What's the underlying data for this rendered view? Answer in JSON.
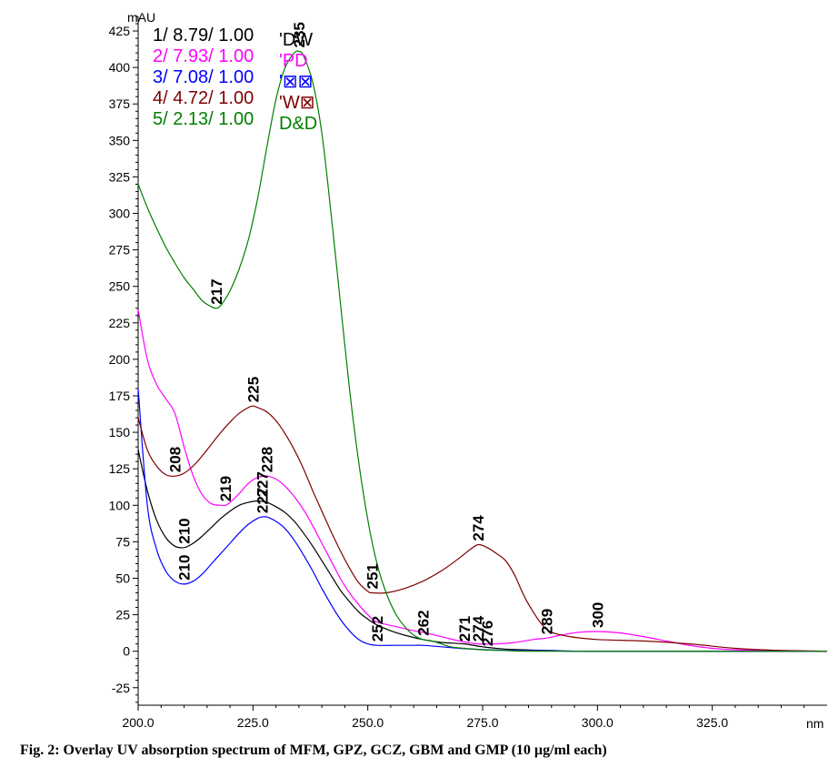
{
  "caption": "Fig. 2: Overlay UV absorption spectrum of MFM, GPZ, GCZ, GBM and GMP (10 µg/ml each)",
  "chart_data": {
    "type": "line",
    "title": "",
    "xlabel": "nm",
    "ylabel": "mAU",
    "xlim": [
      200,
      350
    ],
    "ylim": [
      -37,
      435
    ],
    "x_ticks": [
      200,
      225,
      250,
      275,
      300,
      325
    ],
    "x_tick_labels": [
      "200.0",
      "225.0",
      "250.0",
      "275.0",
      "300.0",
      "325.0"
    ],
    "y_ticks": [
      -25,
      0,
      25,
      50,
      75,
      100,
      125,
      150,
      175,
      200,
      225,
      250,
      275,
      300,
      325,
      350,
      375,
      400,
      425
    ],
    "grid": false,
    "legend_position": "top-left",
    "series": [
      {
        "legend": "1/ 8.79/ 1.00",
        "name": "'DW",
        "color": "#000000",
        "points": [
          [
            200,
            138
          ],
          [
            202,
            110
          ],
          [
            204,
            90
          ],
          [
            206,
            78
          ],
          [
            208,
            72
          ],
          [
            210,
            71
          ],
          [
            212,
            74
          ],
          [
            214,
            79
          ],
          [
            216,
            85
          ],
          [
            218,
            91
          ],
          [
            220,
            96
          ],
          [
            222,
            100
          ],
          [
            224,
            102
          ],
          [
            226,
            103
          ],
          [
            228,
            102
          ],
          [
            230,
            99
          ],
          [
            232,
            95
          ],
          [
            234,
            89
          ],
          [
            236,
            81
          ],
          [
            238,
            72
          ],
          [
            240,
            62
          ],
          [
            242,
            52
          ],
          [
            244,
            42
          ],
          [
            246,
            34
          ],
          [
            248,
            27
          ],
          [
            250,
            22
          ],
          [
            252,
            18
          ],
          [
            255,
            14
          ],
          [
            258,
            11
          ],
          [
            262,
            8
          ],
          [
            266,
            6
          ],
          [
            271,
            5
          ],
          [
            275,
            3
          ],
          [
            280,
            1.5
          ],
          [
            290,
            0.5
          ],
          [
            300,
            0
          ],
          [
            350,
            0
          ]
        ],
        "peak_labels": [
          {
            "x": 210,
            "y": 71,
            "text": "210"
          },
          {
            "x": 227,
            "y": 103,
            "text": "227"
          },
          {
            "x": 274,
            "y": 4,
            "text": "274"
          }
        ]
      },
      {
        "legend": "2/ 7.93/ 1.00",
        "name": "'PD",
        "color": "#ff00ff",
        "points": [
          [
            200,
            234
          ],
          [
            202,
            200
          ],
          [
            204,
            183
          ],
          [
            206,
            173
          ],
          [
            208,
            163
          ],
          [
            210,
            140
          ],
          [
            212,
            120
          ],
          [
            214,
            107
          ],
          [
            216,
            101
          ],
          [
            218,
            100
          ],
          [
            219,
            100
          ],
          [
            220,
            102
          ],
          [
            222,
            108
          ],
          [
            224,
            115
          ],
          [
            226,
            119
          ],
          [
            228,
            120
          ],
          [
            230,
            118
          ],
          [
            232,
            113
          ],
          [
            234,
            106
          ],
          [
            236,
            97
          ],
          [
            238,
            86
          ],
          [
            240,
            74
          ],
          [
            242,
            62
          ],
          [
            244,
            50
          ],
          [
            246,
            40
          ],
          [
            248,
            32
          ],
          [
            250,
            25
          ],
          [
            252,
            20
          ],
          [
            256,
            17
          ],
          [
            260,
            14
          ],
          [
            262,
            13
          ],
          [
            266,
            10
          ],
          [
            270,
            7
          ],
          [
            274,
            5
          ],
          [
            278,
            5
          ],
          [
            282,
            6
          ],
          [
            286,
            8
          ],
          [
            289,
            9
          ],
          [
            292,
            11
          ],
          [
            296,
            13
          ],
          [
            300,
            13.5
          ],
          [
            305,
            12.5
          ],
          [
            310,
            10
          ],
          [
            315,
            7
          ],
          [
            320,
            4
          ],
          [
            325,
            2
          ],
          [
            330,
            1
          ],
          [
            340,
            0.5
          ],
          [
            350,
            0
          ]
        ],
        "peak_labels": [
          {
            "x": 219,
            "y": 100,
            "text": "219"
          },
          {
            "x": 228,
            "y": 120,
            "text": "228"
          },
          {
            "x": 289,
            "y": 9,
            "text": "289"
          },
          {
            "x": 300,
            "y": 13.5,
            "text": "300"
          }
        ]
      },
      {
        "legend": "3/ 7.08/ 1.00",
        "name": "'⊠⊠",
        "color": "#0000ff",
        "points": [
          [
            200,
            180
          ],
          [
            202,
            100
          ],
          [
            204,
            70
          ],
          [
            206,
            55
          ],
          [
            208,
            48
          ],
          [
            210,
            46
          ],
          [
            212,
            48
          ],
          [
            214,
            53
          ],
          [
            216,
            60
          ],
          [
            218,
            67
          ],
          [
            220,
            74
          ],
          [
            222,
            81
          ],
          [
            224,
            87
          ],
          [
            226,
            91
          ],
          [
            227,
            92
          ],
          [
            228,
            92
          ],
          [
            230,
            89
          ],
          [
            232,
            84
          ],
          [
            234,
            76
          ],
          [
            236,
            66
          ],
          [
            238,
            55
          ],
          [
            240,
            43
          ],
          [
            242,
            32
          ],
          [
            244,
            22
          ],
          [
            246,
            14
          ],
          [
            248,
            8
          ],
          [
            250,
            5
          ],
          [
            252,
            4
          ],
          [
            256,
            4
          ],
          [
            260,
            4
          ],
          [
            262,
            4
          ],
          [
            266,
            3
          ],
          [
            270,
            2
          ],
          [
            276,
            1
          ],
          [
            285,
            0.5
          ],
          [
            300,
            0
          ],
          [
            350,
            0
          ]
        ],
        "peak_labels": [
          {
            "x": 210,
            "y": 46,
            "text": "210"
          },
          {
            "x": 227,
            "y": 92,
            "text": "227"
          },
          {
            "x": 252,
            "y": 4,
            "text": "252"
          },
          {
            "x": 276,
            "y": 1,
            "text": "276"
          }
        ]
      },
      {
        "legend": "4/ 4.72/ 1.00",
        "name": "'W⊠",
        "color": "#7f0000",
        "points": [
          [
            200,
            160
          ],
          [
            202,
            138
          ],
          [
            204,
            127
          ],
          [
            206,
            121
          ],
          [
            208,
            120
          ],
          [
            210,
            122
          ],
          [
            212,
            127
          ],
          [
            214,
            134
          ],
          [
            216,
            142
          ],
          [
            218,
            150
          ],
          [
            220,
            157
          ],
          [
            222,
            163
          ],
          [
            224,
            167
          ],
          [
            225,
            168
          ],
          [
            226,
            167
          ],
          [
            228,
            164
          ],
          [
            230,
            158
          ],
          [
            232,
            149
          ],
          [
            234,
            138
          ],
          [
            236,
            125
          ],
          [
            238,
            110
          ],
          [
            240,
            96
          ],
          [
            242,
            82
          ],
          [
            244,
            69
          ],
          [
            246,
            57
          ],
          [
            248,
            47
          ],
          [
            250,
            41
          ],
          [
            251,
            40
          ],
          [
            254,
            40
          ],
          [
            258,
            43
          ],
          [
            262,
            48
          ],
          [
            266,
            55
          ],
          [
            270,
            64
          ],
          [
            272,
            69
          ],
          [
            274,
            73
          ],
          [
            276,
            71
          ],
          [
            278,
            67
          ],
          [
            280,
            62
          ],
          [
            282,
            52
          ],
          [
            284,
            38
          ],
          [
            286,
            27
          ],
          [
            288,
            18
          ],
          [
            290,
            13
          ],
          [
            294,
            10
          ],
          [
            300,
            8
          ],
          [
            310,
            7
          ],
          [
            320,
            5
          ],
          [
            330,
            2
          ],
          [
            340,
            0.5
          ],
          [
            350,
            0
          ]
        ],
        "peak_labels": [
          {
            "x": 208,
            "y": 120,
            "text": "208"
          },
          {
            "x": 225,
            "y": 168,
            "text": "225"
          },
          {
            "x": 251,
            "y": 40,
            "text": "251"
          },
          {
            "x": 274,
            "y": 73,
            "text": "274"
          }
        ]
      },
      {
        "legend": "5/ 2.13/ 1.00",
        "name": "D&D",
        "color": "#007f00",
        "points": [
          [
            200,
            320
          ],
          [
            202,
            304
          ],
          [
            204,
            290
          ],
          [
            206,
            277
          ],
          [
            208,
            266
          ],
          [
            210,
            256
          ],
          [
            212,
            248
          ],
          [
            214,
            240
          ],
          [
            216,
            236
          ],
          [
            217,
            235
          ],
          [
            218,
            237
          ],
          [
            220,
            247
          ],
          [
            222,
            262
          ],
          [
            224,
            282
          ],
          [
            226,
            310
          ],
          [
            228,
            345
          ],
          [
            230,
            378
          ],
          [
            232,
            400
          ],
          [
            234,
            410
          ],
          [
            235,
            411
          ],
          [
            236,
            408
          ],
          [
            238,
            390
          ],
          [
            240,
            355
          ],
          [
            242,
            300
          ],
          [
            244,
            240
          ],
          [
            246,
            180
          ],
          [
            248,
            130
          ],
          [
            250,
            90
          ],
          [
            252,
            60
          ],
          [
            254,
            40
          ],
          [
            256,
            26
          ],
          [
            258,
            17
          ],
          [
            260,
            11
          ],
          [
            262,
            8
          ],
          [
            264,
            7
          ],
          [
            266,
            5
          ],
          [
            268,
            3
          ],
          [
            271,
            2
          ],
          [
            275,
            1
          ],
          [
            280,
            0.5
          ],
          [
            290,
            0
          ],
          [
            350,
            0
          ]
        ],
        "peak_labels": [
          {
            "x": 217,
            "y": 235,
            "text": "217"
          },
          {
            "x": 235,
            "y": 411,
            "text": "235"
          },
          {
            "x": 262,
            "y": 8,
            "text": "262"
          },
          {
            "x": 271,
            "y": 4,
            "text": "271"
          }
        ]
      }
    ]
  }
}
